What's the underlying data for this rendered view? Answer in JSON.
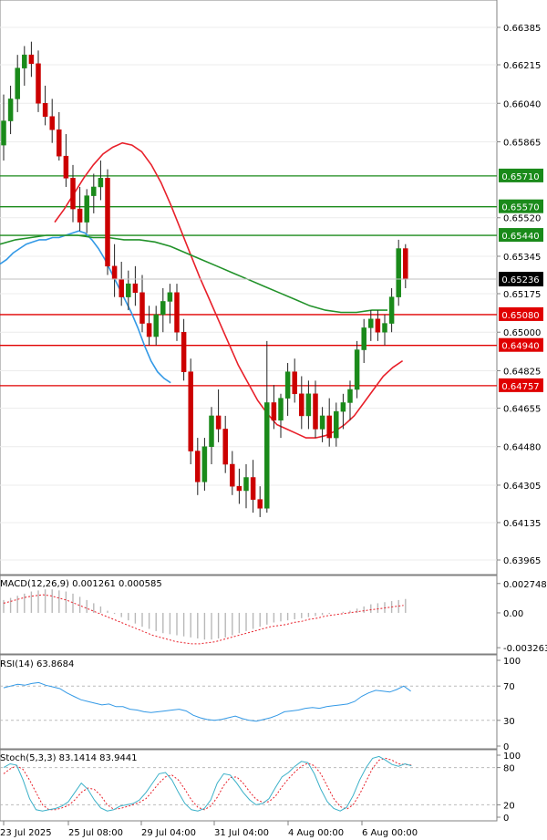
{
  "chart_data": {
    "type": "candlestick",
    "symbol_note": "",
    "price_axis": {
      "ticks": [
        "0.66385",
        "0.66215",
        "0.66040",
        "0.65865",
        "0.65520",
        "0.65345",
        "0.65175",
        "0.65000",
        "0.64825",
        "0.64655",
        "0.64480",
        "0.64305",
        "0.64135",
        "0.63965"
      ],
      "range": [
        0.6386,
        0.6648
      ],
      "current_price": "0.65236"
    },
    "levels": [
      {
        "label": "0.65710",
        "value": 0.6571,
        "color": "#1a8a1a"
      },
      {
        "label": "0.65570",
        "value": 0.6557,
        "color": "#1a8a1a"
      },
      {
        "label": "0.65440",
        "value": 0.6544,
        "color": "#1a8a1a"
      },
      {
        "label": "0.65080",
        "value": 0.6508,
        "color": "#e00000"
      },
      {
        "label": "0.64940",
        "value": 0.6494,
        "color": "#e00000"
      },
      {
        "label": "0.64757",
        "value": 0.64757,
        "color": "#e00000"
      }
    ],
    "time_labels": [
      "23 Jul 2025",
      "25 Jul 08:00",
      "29 Jul 04:00",
      "31 Jul 04:00",
      "4 Aug 00:00",
      "6 Aug 00:00"
    ],
    "candles": [
      [
        0.6585,
        0.6608,
        0.6578,
        0.6596
      ],
      [
        0.6596,
        0.6612,
        0.659,
        0.6606
      ],
      [
        0.6606,
        0.6626,
        0.66,
        0.662
      ],
      [
        0.662,
        0.663,
        0.6612,
        0.6626
      ],
      [
        0.6626,
        0.6632,
        0.6616,
        0.6622
      ],
      [
        0.6622,
        0.6628,
        0.66,
        0.6604
      ],
      [
        0.6604,
        0.6612,
        0.6594,
        0.6598
      ],
      [
        0.6598,
        0.6606,
        0.6586,
        0.6592
      ],
      [
        0.6592,
        0.66,
        0.6578,
        0.658
      ],
      [
        0.658,
        0.659,
        0.6566,
        0.657
      ],
      [
        0.657,
        0.6576,
        0.655,
        0.6556
      ],
      [
        0.6556,
        0.6566,
        0.6546,
        0.655
      ],
      [
        0.655,
        0.6565,
        0.6545,
        0.6562
      ],
      [
        0.6562,
        0.6572,
        0.6554,
        0.6566
      ],
      [
        0.6566,
        0.6578,
        0.656,
        0.657
      ],
      [
        0.657,
        0.6574,
        0.6526,
        0.653
      ],
      [
        0.653,
        0.654,
        0.6516,
        0.6524
      ],
      [
        0.6524,
        0.6532,
        0.6512,
        0.6516
      ],
      [
        0.6516,
        0.6528,
        0.651,
        0.6522
      ],
      [
        0.6522,
        0.653,
        0.6512,
        0.6518
      ],
      [
        0.6518,
        0.6526,
        0.65,
        0.6504
      ],
      [
        0.6504,
        0.6512,
        0.6494,
        0.6498
      ],
      [
        0.6498,
        0.6512,
        0.6494,
        0.6508
      ],
      [
        0.6508,
        0.652,
        0.65,
        0.6514
      ],
      [
        0.6514,
        0.6522,
        0.6504,
        0.6518
      ],
      [
        0.6518,
        0.6522,
        0.6496,
        0.65
      ],
      [
        0.65,
        0.6506,
        0.6478,
        0.6482
      ],
      [
        0.6482,
        0.6488,
        0.644,
        0.6446
      ],
      [
        0.6446,
        0.6452,
        0.6426,
        0.6432
      ],
      [
        0.6432,
        0.6452,
        0.6428,
        0.6448
      ],
      [
        0.6448,
        0.6466,
        0.644,
        0.6462
      ],
      [
        0.6462,
        0.6474,
        0.645,
        0.6456
      ],
      [
        0.6456,
        0.6462,
        0.6436,
        0.644
      ],
      [
        0.644,
        0.6446,
        0.6426,
        0.643
      ],
      [
        0.643,
        0.6438,
        0.6422,
        0.6428
      ],
      [
        0.6428,
        0.644,
        0.642,
        0.6434
      ],
      [
        0.6434,
        0.6442,
        0.6418,
        0.6424
      ],
      [
        0.6424,
        0.643,
        0.6416,
        0.642
      ],
      [
        0.642,
        0.6496,
        0.6418,
        0.6468
      ],
      [
        0.6468,
        0.6476,
        0.6456,
        0.646
      ],
      [
        0.646,
        0.6472,
        0.6452,
        0.647
      ],
      [
        0.647,
        0.6486,
        0.6462,
        0.6482
      ],
      [
        0.6482,
        0.6488,
        0.6468,
        0.6472
      ],
      [
        0.6472,
        0.648,
        0.6456,
        0.6462
      ],
      [
        0.6462,
        0.6478,
        0.6456,
        0.6472
      ],
      [
        0.6472,
        0.6478,
        0.6452,
        0.6456
      ],
      [
        0.6456,
        0.6466,
        0.645,
        0.6462
      ],
      [
        0.6462,
        0.647,
        0.6448,
        0.6452
      ],
      [
        0.6452,
        0.6468,
        0.6448,
        0.6464
      ],
      [
        0.6464,
        0.6472,
        0.6456,
        0.6468
      ],
      [
        0.6468,
        0.6478,
        0.646,
        0.6474
      ],
      [
        0.6474,
        0.6496,
        0.647,
        0.6492
      ],
      [
        0.6492,
        0.6506,
        0.6486,
        0.6502
      ],
      [
        0.6502,
        0.651,
        0.6496,
        0.6506
      ],
      [
        0.6506,
        0.651,
        0.6496,
        0.65
      ],
      [
        0.65,
        0.6508,
        0.6494,
        0.6504
      ],
      [
        0.6504,
        0.652,
        0.65,
        0.6516
      ],
      [
        0.6516,
        0.6542,
        0.6512,
        0.6538
      ],
      [
        0.6538,
        0.654,
        0.652,
        0.6524
      ]
    ],
    "moving_averages": [
      {
        "color": "#e8202a",
        "values": [
          0.655,
          0.6556,
          0.6563,
          0.657,
          0.6576,
          0.6581,
          0.6584,
          0.6586,
          0.6585,
          0.6582,
          0.6576,
          0.6568,
          0.6558,
          0.6547,
          0.6536,
          0.6525,
          0.6515,
          0.6505,
          0.6495,
          0.6485,
          0.6477,
          0.6469,
          0.6463,
          0.6458,
          0.6456,
          0.6454,
          0.6452,
          0.6452,
          0.6453,
          0.6455,
          0.6458,
          0.6462,
          0.6468,
          0.6474,
          0.648,
          0.6484,
          0.6487
        ]
      },
      {
        "color": "#3399e6",
        "values": [
          0.6531,
          0.6533,
          0.6536,
          0.6538,
          0.654,
          0.6541,
          0.6542,
          0.6542,
          0.6543,
          0.6543,
          0.6544,
          0.6545,
          0.6546,
          0.6545,
          0.6542,
          0.6538,
          0.6533,
          0.6527,
          0.6521,
          0.6515,
          0.6509,
          0.6502,
          0.6494,
          0.6487,
          0.6482,
          0.6479,
          0.6477
        ]
      },
      {
        "color": "#22922a",
        "values": [
          0.654,
          0.6542,
          0.6543,
          0.6544,
          0.6544,
          0.6544,
          0.6543,
          0.6543,
          0.6542,
          0.6542,
          0.6541,
          0.6539,
          0.6536,
          0.6533,
          0.653,
          0.6527,
          0.6524,
          0.6521,
          0.6518,
          0.6515,
          0.6512,
          0.651,
          0.6509,
          0.6509,
          0.651,
          0.651
        ]
      }
    ],
    "macd": {
      "label": "MACD(12,26,9) 0.001261 0.000585",
      "ticks": [
        "0.002748",
        "0.00",
        "-0.003263"
      ],
      "range": [
        -0.00342,
        0.0029
      ],
      "histogram": [
        0.0012,
        0.0014,
        0.0016,
        0.0018,
        0.002,
        0.0021,
        0.0022,
        0.0022,
        0.0021,
        0.002,
        0.0018,
        0.0015,
        0.0012,
        0.0009,
        0.0006,
        0.0002,
        -0.0001,
        -0.0004,
        -0.0007,
        -0.001,
        -0.0013,
        -0.0015,
        -0.0017,
        -0.0019,
        -0.002,
        -0.0021,
        -0.0022,
        -0.0023,
        -0.0024,
        -0.0025,
        -0.0025,
        -0.0024,
        -0.0023,
        -0.0021,
        -0.0019,
        -0.0017,
        -0.0015,
        -0.0013,
        -0.0011,
        -0.0009,
        -0.0008,
        -0.0007,
        -0.0006,
        -0.0005,
        -0.0004,
        -0.0003,
        -0.0002,
        -0.0001,
        0.0,
        0.0001,
        0.0002,
        0.0004,
        0.0006,
        0.0008,
        0.0009,
        0.001,
        0.0011,
        0.0012,
        0.0013
      ],
      "signal": [
        0.0009,
        0.0011,
        0.0013,
        0.0015,
        0.0016,
        0.0017,
        0.0016,
        0.0014,
        0.0012,
        0.0009,
        0.0006,
        0.0003,
        0.0,
        -0.0003,
        -0.0006,
        -0.0009,
        -0.0012,
        -0.0015,
        -0.0018,
        -0.0021,
        -0.0023,
        -0.0025,
        -0.0027,
        -0.0028,
        -0.0029,
        -0.0029,
        -0.0028,
        -0.0027,
        -0.0025,
        -0.0023,
        -0.0021,
        -0.0019,
        -0.0017,
        -0.0015,
        -0.0013,
        -0.0012,
        -0.0011,
        -0.0009,
        -0.0008,
        -0.0006,
        -0.0005,
        -0.0003,
        -0.0002,
        -0.0001,
        0.0,
        0.0001,
        0.0002,
        0.0003,
        0.0004,
        0.0005,
        0.0006,
        0.0007
      ]
    },
    "rsi": {
      "label": "RSI(14) 63.8684",
      "ticks": [
        "100",
        "70",
        "30",
        "0"
      ],
      "values": [
        68,
        70,
        72,
        71,
        73,
        74,
        71,
        69,
        67,
        62,
        58,
        54,
        52,
        50,
        48,
        49,
        46,
        46,
        43,
        42,
        40,
        39,
        40,
        41,
        42,
        43,
        41,
        36,
        33,
        31,
        30,
        31,
        33,
        35,
        32,
        30,
        29,
        31,
        33,
        36,
        40,
        41,
        42,
        44,
        45,
        44,
        46,
        47,
        48,
        49,
        52,
        58,
        62,
        65,
        64,
        63,
        66,
        70,
        64
      ]
    },
    "stoch": {
      "label": "Stoch(5,3,3) 83.1414 83.9441",
      "ticks": [
        "100",
        "80",
        "20",
        "0"
      ],
      "k": [
        80,
        86,
        84,
        60,
        30,
        12,
        10,
        12,
        14,
        18,
        25,
        40,
        55,
        45,
        28,
        15,
        10,
        12,
        18,
        20,
        22,
        28,
        40,
        55,
        70,
        72,
        60,
        40,
        22,
        12,
        10,
        14,
        28,
        55,
        70,
        68,
        55,
        40,
        28,
        20,
        22,
        30,
        48,
        65,
        72,
        82,
        90,
        88,
        70,
        45,
        25,
        14,
        10,
        16,
        35,
        60,
        80,
        95,
        98,
        92,
        85,
        82,
        86,
        83
      ],
      "d": [
        70,
        78,
        83,
        77,
        60,
        40,
        20,
        12,
        12,
        15,
        19,
        28,
        40,
        47,
        45,
        35,
        20,
        13,
        14,
        17,
        20,
        24,
        30,
        42,
        55,
        65,
        68,
        60,
        45,
        28,
        16,
        12,
        18,
        32,
        51,
        64,
        65,
        55,
        41,
        29,
        24,
        25,
        34,
        49,
        62,
        73,
        82,
        87,
        83,
        70,
        50,
        30,
        17,
        13,
        20,
        37,
        58,
        79,
        92,
        95,
        92,
        86,
        85,
        84
      ]
    }
  }
}
